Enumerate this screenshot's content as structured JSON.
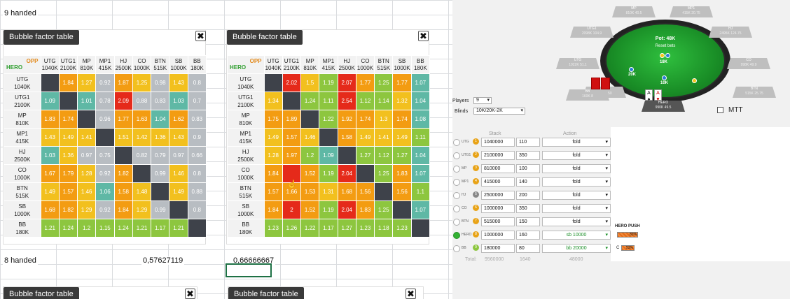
{
  "sheet": {
    "row1_text": "9 handed",
    "row2_text": "8 handed",
    "value1": "0,57627119",
    "value2": "0,66666667"
  },
  "tables": [
    {
      "title": "Bubble factor table",
      "close": "✖",
      "opp_label": "OPP",
      "hero_label": "HERO",
      "columns": [
        [
          "UTG",
          "1040K"
        ],
        [
          "UTG1",
          "2100K"
        ],
        [
          "MP",
          "810K"
        ],
        [
          "MP1",
          "415K"
        ],
        [
          "HJ",
          "2500K"
        ],
        [
          "CO",
          "1000K"
        ],
        [
          "BTN",
          "515K"
        ],
        [
          "SB",
          "1000K"
        ],
        [
          "BB",
          "180K"
        ]
      ],
      "rows": [
        {
          "pos": "UTG",
          "stack": "1040K",
          "vals": [
            "",
            "1.84",
            "1.27",
            "0.92",
            "1.87",
            "1.25",
            "0.98",
            "1.43",
            "0.8"
          ],
          "colors": [
            "dark",
            "#f39c12",
            "#f2c01e",
            "#b8bdc2",
            "#f39c12",
            "#f2c01e",
            "#b8bdc2",
            "#f2c01e",
            "#b8bdc2"
          ]
        },
        {
          "pos": "UTG1",
          "stack": "2100K",
          "vals": [
            "1.09",
            "",
            "1.01",
            "0.78",
            "2.09",
            "0.88",
            "0.83",
            "1.03",
            "0.7"
          ],
          "colors": [
            "#5fb8a5",
            "dark",
            "#5fb8a5",
            "#b8bdc2",
            "#e52a1a",
            "#b8bdc2",
            "#b8bdc2",
            "#5fb8a5",
            "#b8bdc2"
          ]
        },
        {
          "pos": "MP",
          "stack": "810K",
          "vals": [
            "1.83",
            "1.74",
            "",
            "0.96",
            "1.77",
            "1.63",
            "1.04",
            "1.62",
            "0.83"
          ],
          "colors": [
            "#f39c12",
            "#f39c12",
            "dark",
            "#b8bdc2",
            "#f39c12",
            "#f39c12",
            "#5fb8a5",
            "#f39c12",
            "#b8bdc2"
          ]
        },
        {
          "pos": "MP1",
          "stack": "415K",
          "vals": [
            "1.43",
            "1.49",
            "1.41",
            "",
            "1.51",
            "1.42",
            "1.36",
            "1.43",
            "0.9"
          ],
          "colors": [
            "#f2c01e",
            "#f2c01e",
            "#f2c01e",
            "dark",
            "#f2c01e",
            "#f2c01e",
            "#f2c01e",
            "#f2c01e",
            "#b8bdc2"
          ]
        },
        {
          "pos": "HJ",
          "stack": "2500K",
          "vals": [
            "1.03",
            "1.36",
            "0.97",
            "0.75",
            "",
            "0.82",
            "0.79",
            "0.97",
            "0.66"
          ],
          "colors": [
            "#5fb8a5",
            "#f2c01e",
            "#b8bdc2",
            "#b8bdc2",
            "dark",
            "#b8bdc2",
            "#b8bdc2",
            "#b8bdc2",
            "#b8bdc2"
          ]
        },
        {
          "pos": "CO",
          "stack": "1000K",
          "vals": [
            "1.67",
            "1.79",
            "1.28",
            "0.92",
            "1.82",
            "",
            "0.99",
            "1.46",
            "0.8"
          ],
          "colors": [
            "#f39c12",
            "#f39c12",
            "#f2c01e",
            "#b8bdc2",
            "#f39c12",
            "dark",
            "#b8bdc2",
            "#f2c01e",
            "#b8bdc2"
          ]
        },
        {
          "pos": "BTN",
          "stack": "515K",
          "vals": [
            "1.49",
            "1.57",
            "1.46",
            "1.06",
            "1.58",
            "1.48",
            "",
            "1.49",
            "0.88"
          ],
          "colors": [
            "#f2c01e",
            "#f39c12",
            "#f2c01e",
            "#5fb8a5",
            "#f39c12",
            "#f2c01e",
            "dark",
            "#f2c01e",
            "#b8bdc2"
          ]
        },
        {
          "pos": "SB",
          "stack": "1000K",
          "vals": [
            "1.68",
            "1.82",
            "1.29",
            "0.92",
            "1.84",
            "1.29",
            "0.99",
            "",
            "0.8"
          ],
          "colors": [
            "#f39c12",
            "#f39c12",
            "#f2c01e",
            "#b8bdc2",
            "#f39c12",
            "#f2c01e",
            "#b8bdc2",
            "dark",
            "#b8bdc2"
          ]
        },
        {
          "pos": "BB",
          "stack": "180K",
          "vals": [
            "1.21",
            "1.24",
            "1.2",
            "1.15",
            "1.24",
            "1.21",
            "1.17",
            "1.21",
            ""
          ],
          "colors": [
            "#8dc63f",
            "#8dc63f",
            "#8dc63f",
            "#8dc63f",
            "#8dc63f",
            "#8dc63f",
            "#8dc63f",
            "#8dc63f",
            "dark"
          ]
        }
      ]
    },
    {
      "title": "Bubble factor table",
      "close": "✖",
      "opp_label": "OPP",
      "hero_label": "HERO",
      "columns": [
        [
          "UTG",
          "1040K"
        ],
        [
          "UTG1",
          "2100K"
        ],
        [
          "MP",
          "810K"
        ],
        [
          "MP1",
          "415K"
        ],
        [
          "HJ",
          "2500K"
        ],
        [
          "CO",
          "1000K"
        ],
        [
          "BTN",
          "515K"
        ],
        [
          "SB",
          "1000K"
        ],
        [
          "BB",
          "180K"
        ]
      ],
      "rows": [
        {
          "pos": "UTG",
          "stack": "1040K",
          "vals": [
            "",
            "2.02",
            "1.5",
            "1.19",
            "2.07",
            "1.77",
            "1.25",
            "1.77",
            "1.07"
          ],
          "colors": [
            "dark",
            "#e52a1a",
            "#f2c01e",
            "#8dc63f",
            "#e52a1a",
            "#f39c12",
            "#8dc63f",
            "#f39c12",
            "#5fb8a5"
          ]
        },
        {
          "pos": "UTG1",
          "stack": "2100K",
          "vals": [
            "1.34",
            "",
            "1.24",
            "1.11",
            "2.54",
            "1.12",
            "1.14",
            "1.32",
            "1.04"
          ],
          "colors": [
            "#f2c01e",
            "dark",
            "#8dc63f",
            "#8dc63f",
            "#e52a1a",
            "#8dc63f",
            "#8dc63f",
            "#f2c01e",
            "#5fb8a5"
          ]
        },
        {
          "pos": "MP",
          "stack": "810K",
          "vals": [
            "1.75",
            "1.89",
            "",
            "1.22",
            "1.92",
            "1.74",
            "1.3",
            "1.74",
            "1.08"
          ],
          "colors": [
            "#f39c12",
            "#f39c12",
            "dark",
            "#8dc63f",
            "#f39c12",
            "#f39c12",
            "#f2c01e",
            "#f39c12",
            "#5fb8a5"
          ]
        },
        {
          "pos": "MP1",
          "stack": "415K",
          "vals": [
            "1.49",
            "1.57",
            "1.46",
            "",
            "1.58",
            "1.49",
            "1.41",
            "1.49",
            "1.11"
          ],
          "colors": [
            "#f2c01e",
            "#f39c12",
            "#f2c01e",
            "dark",
            "#f39c12",
            "#f2c01e",
            "#f2c01e",
            "#f2c01e",
            "#8dc63f"
          ]
        },
        {
          "pos": "HJ",
          "stack": "2500K",
          "vals": [
            "1.28",
            "1.97",
            "1.2",
            "1.09",
            "",
            "1.27",
            "1.12",
            "1.27",
            "1.04"
          ],
          "colors": [
            "#f2c01e",
            "#f39c12",
            "#8dc63f",
            "#5fb8a5",
            "dark",
            "#8dc63f",
            "#8dc63f",
            "#8dc63f",
            "#5fb8a5"
          ]
        },
        {
          "pos": "CO",
          "stack": "1000K",
          "vals": [
            "1.84",
            "",
            "1.52",
            "1.19",
            "2.04",
            "",
            "1.25",
            "1.83",
            "1.07"
          ],
          "colors": [
            "#f39c12",
            "#e52a1a",
            "#f39c12",
            "#8dc63f",
            "#e52a1a",
            "dark",
            "#8dc63f",
            "#f39c12",
            "#5fb8a5"
          ]
        },
        {
          "pos": "BTN",
          "stack": "515K",
          "vals": [
            "1.57",
            "1.66",
            "1.53",
            "1.31",
            "1.68",
            "1.56",
            "",
            "1.56",
            "1.1"
          ],
          "colors": [
            "#f39c12",
            "#f39c12",
            "#f39c12",
            "#f2c01e",
            "#f39c12",
            "#f39c12",
            "dark",
            "#f39c12",
            "#8dc63f"
          ]
        },
        {
          "pos": "SB",
          "stack": "1000K",
          "vals": [
            "1.84",
            "2",
            "1.52",
            "1.19",
            "2.04",
            "1.83",
            "1.25",
            "",
            "1.07"
          ],
          "colors": [
            "#f39c12",
            "#e52a1a",
            "#f39c12",
            "#8dc63f",
            "#e52a1a",
            "#f39c12",
            "#8dc63f",
            "dark",
            "#5fb8a5"
          ]
        },
        {
          "pos": "BB",
          "stack": "180K",
          "vals": [
            "1.23",
            "1.26",
            "1.22",
            "1.17",
            "1.27",
            "1.23",
            "1.18",
            "1.23",
            ""
          ],
          "colors": [
            "#8dc63f",
            "#8dc63f",
            "#8dc63f",
            "#8dc63f",
            "#8dc63f",
            "#8dc63f",
            "#8dc63f",
            "#8dc63f",
            "dark"
          ]
        }
      ]
    }
  ],
  "bottom_panels": [
    {
      "title": "Bubble factor table",
      "close": "✖"
    },
    {
      "title": "Bubble factor table",
      "close": "✖"
    }
  ],
  "poker": {
    "pot": "Pot: 48K",
    "reset": "Reset bets",
    "felt_amounts": [
      "18K",
      "20K",
      "10K"
    ],
    "seats": [
      {
        "name": "MP",
        "stack": "810K",
        "bb": "40.5"
      },
      {
        "name": "MP1",
        "stack": "415K",
        "bb": "20.75"
      },
      {
        "name": "UTG1",
        "stack": "2098K",
        "bb": "104.9"
      },
      {
        "name": "HJ",
        "stack": "2495K",
        "bb": "124.75"
      },
      {
        "name": "UTG",
        "stack": "1022K",
        "bb": "51.1"
      },
      {
        "name": "CO",
        "stack": "998K",
        "bb": "49.9"
      },
      {
        "name": "SB",
        "stack": "1000K",
        "bb": "50"
      },
      {
        "name": "BTN",
        "stack": "515K",
        "bb": "25.75"
      },
      {
        "name": "HERO",
        "stack": "990K",
        "bb": "49.5"
      },
      {
        "name": "BB",
        "stack": "160K",
        "bb": "8"
      }
    ],
    "hero_cards": [
      {
        "rank": "A",
        "suit": "♠"
      },
      {
        "rank": "A",
        "suit": "♥"
      }
    ],
    "mtt_label": "MTT",
    "players_label": "Players",
    "players_value": "9",
    "blinds_label": "Blinds",
    "blinds_value": "10K/20K-2K",
    "col_stack": "Stack",
    "col_action": "Action",
    "rows": [
      {
        "pos": "UTG",
        "num": "1",
        "numColor": "#e8a317",
        "stack": "1040000",
        "bet": "110",
        "action": "fold",
        "selected": false
      },
      {
        "pos": "UTG1",
        "num": "2",
        "numColor": "#e8a317",
        "stack": "2100000",
        "bet": "350",
        "action": "fold",
        "selected": false
      },
      {
        "pos": "MP",
        "num": "3",
        "numColor": "#e8a317",
        "stack": "810000",
        "bet": "100",
        "action": "fold",
        "selected": false
      },
      {
        "pos": "MP1",
        "num": "4",
        "numColor": "#e8a317",
        "stack": "415000",
        "bet": "140",
        "action": "fold",
        "selected": false
      },
      {
        "pos": "HJ",
        "num": "5",
        "numColor": "#888888",
        "stack": "2500000",
        "bet": "200",
        "action": "fold",
        "selected": false
      },
      {
        "pos": "CO",
        "num": "6",
        "numColor": "#e8a317",
        "stack": "1000000",
        "bet": "350",
        "action": "fold",
        "selected": false
      },
      {
        "pos": "BTN",
        "num": "7",
        "numColor": "#e8a317",
        "stack": "515000",
        "bet": "150",
        "action": "fold",
        "selected": false
      },
      {
        "pos": "HERO",
        "num": "8",
        "numColor": "#e8a317",
        "stack": "1000000",
        "bet": "160",
        "action": "sb 10000",
        "selected": true
      },
      {
        "pos": "BB",
        "num": "9",
        "numColor": "#8dc63f",
        "stack": "180000",
        "bet": "80",
        "action": "bb 20000",
        "selected": false
      }
    ],
    "totals_label": "Total:",
    "total_stack": "9560000",
    "total_bet": "1640",
    "total_action": "48000",
    "hero_push_label": "HERO PUSH",
    "push_bars": [
      {
        "label": "",
        "pct_text": "83%",
        "fill": 0.83
      },
      {
        "label": "C",
        "pct_text": "53%",
        "fill": 0.53
      }
    ]
  }
}
